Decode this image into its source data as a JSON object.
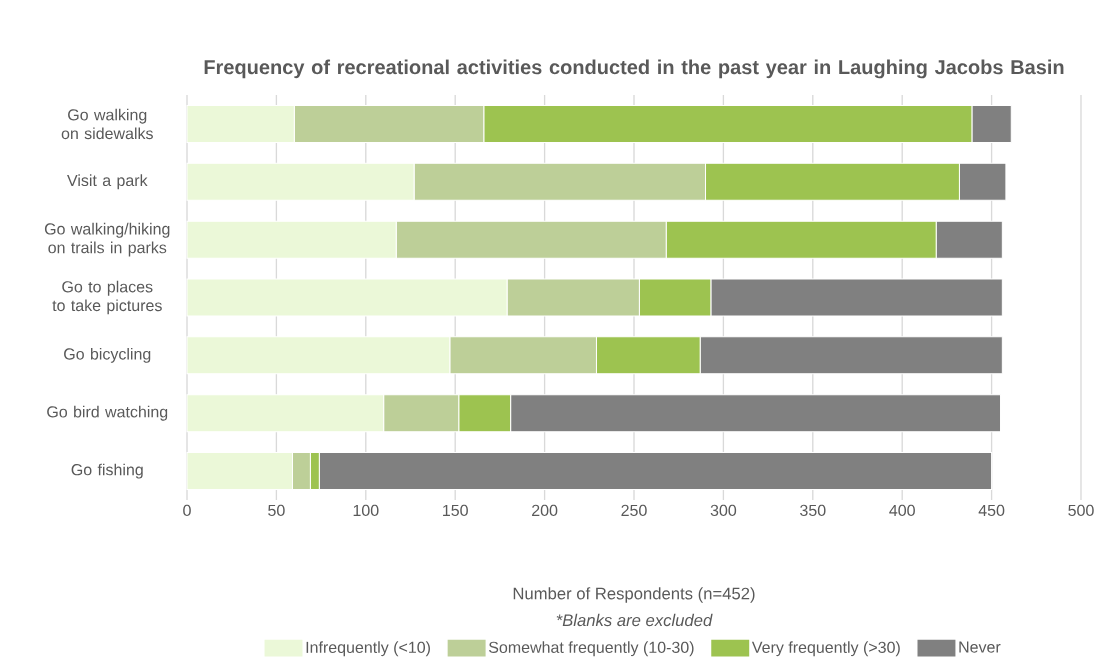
{
  "chart_data": {
    "type": "bar",
    "orientation": "horizontal",
    "stacked": true,
    "title": "Frequency of recreational activities conducted in the past year in Laughing Jacobs Basin",
    "xlabel": "Number of Respondents (n=452)",
    "annotations": [
      "*Blanks are excluded"
    ],
    "categories": [
      "Go walking on sidewalks",
      "Visit a park",
      "Go walking/hiking on trails in parks",
      "Go to places to take pictures",
      "Go bicycling",
      "Go bird watching",
      "Go fishing"
    ],
    "series": [
      {
        "name": "Infrequently (<10)",
        "color": "#ebf8d8",
        "values": [
          60,
          127,
          117,
          179,
          147,
          110,
          59
        ]
      },
      {
        "name": "Somewhat frequently (10-30)",
        "color": "#bdcf98",
        "values": [
          106,
          163,
          151,
          74,
          82,
          42,
          10
        ]
      },
      {
        "name": "Very frequently (>30)",
        "color": "#9dc350",
        "values": [
          273,
          142,
          151,
          40,
          58,
          29,
          5
        ]
      },
      {
        "name": "Never",
        "color": "#808080",
        "values": [
          22,
          26,
          37,
          163,
          169,
          274,
          376
        ]
      }
    ],
    "xlim": [
      0,
      500
    ],
    "xticks": [
      0,
      50,
      100,
      150,
      200,
      250,
      300,
      350,
      400,
      450,
      500
    ],
    "grid": "x",
    "legend": "bottom"
  }
}
